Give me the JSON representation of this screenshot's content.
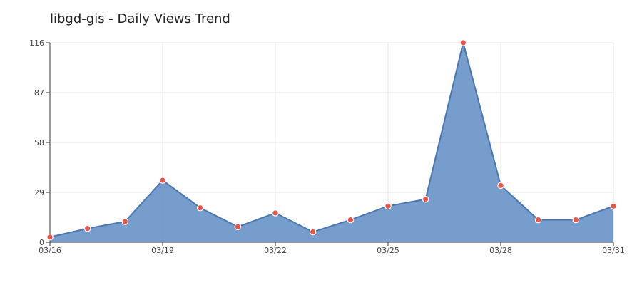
{
  "chart_data": {
    "type": "area",
    "title": "libgd-gis - Daily Views Trend",
    "xlabel": "",
    "ylabel": "",
    "x": [
      "03/16",
      "03/17",
      "03/18",
      "03/19",
      "03/20",
      "03/21",
      "03/22",
      "03/23",
      "03/24",
      "03/25",
      "03/26",
      "03/27",
      "03/28",
      "03/29",
      "03/30",
      "03/31"
    ],
    "values": [
      3,
      8,
      12,
      36,
      20,
      9,
      17,
      6,
      13,
      21,
      25,
      116,
      33,
      13,
      13,
      21
    ],
    "x_tick_labels": [
      "03/16",
      "03/19",
      "03/22",
      "03/25",
      "03/28",
      "03/31"
    ],
    "y_ticks": [
      0,
      29,
      58,
      87,
      116
    ],
    "ylim": [
      0,
      116
    ],
    "grid": true,
    "legend": "none",
    "colors": {
      "area_fill": "#6a95c8",
      "line": "#4a76b0",
      "marker_fill": "#e8534a",
      "marker_stroke": "#ffffff",
      "grid": "#e6e6e6",
      "axis": "#333333"
    }
  }
}
